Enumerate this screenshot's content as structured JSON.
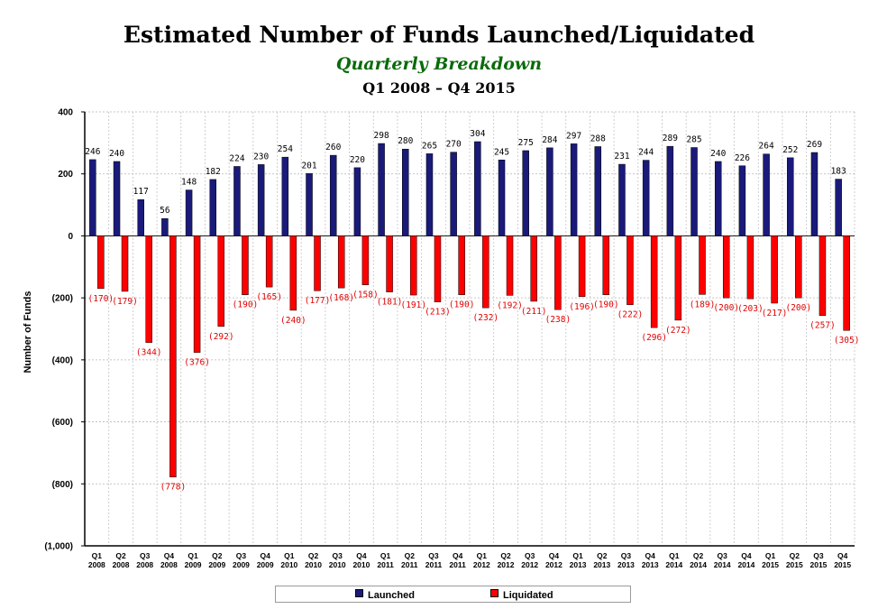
{
  "title": "Estimated Number of Funds Launched/Liquidated",
  "subtitle": "Quarterly Breakdown",
  "period": "Q1 2008 – Q4 2015",
  "colors": {
    "launched": "#1a1a7a",
    "liquidated": "#ff0000",
    "label_liquidated": "#e00000",
    "subtitle": "#0a6b0a"
  },
  "chart_data": {
    "type": "bar",
    "title": "Estimated Number of Funds Launched/Liquidated",
    "ylabel": "Number of Funds",
    "xlabel": "",
    "ylim": [
      -1000,
      400
    ],
    "yticks": [
      400,
      200,
      0,
      -200,
      -400,
      -600,
      -800,
      -1000
    ],
    "ytick_labels": [
      "400",
      "200",
      "0",
      "(200)",
      "(400)",
      "(600)",
      "(800)",
      "(1,000)"
    ],
    "grid": true,
    "legend_position": "bottom",
    "categories": [
      "Q1 2008",
      "Q2 2008",
      "Q3 2008",
      "Q4 2008",
      "Q1 2009",
      "Q2 2009",
      "Q3 2009",
      "Q4 2009",
      "Q1 2010",
      "Q2 2010",
      "Q3 2010",
      "Q4 2010",
      "Q1 2011",
      "Q2 2011",
      "Q3 2011",
      "Q4 2011",
      "Q1 2012",
      "Q2 2012",
      "Q3 2012",
      "Q4 2012",
      "Q1 2013",
      "Q2 2013",
      "Q3 2013",
      "Q4 2013",
      "Q1 2014",
      "Q2 2014",
      "Q3 2014",
      "Q4 2014",
      "Q1 2015",
      "Q2 2015",
      "Q3 2015",
      "Q4 2015"
    ],
    "series": [
      {
        "name": "Launched",
        "values": [
          246,
          240,
          117,
          56,
          148,
          182,
          224,
          230,
          254,
          201,
          260,
          220,
          298,
          280,
          265,
          270,
          304,
          245,
          275,
          284,
          297,
          288,
          231,
          244,
          289,
          285,
          240,
          226,
          264,
          252,
          269,
          183
        ]
      },
      {
        "name": "Liquidated",
        "values": [
          -170,
          -179,
          -344,
          -778,
          -376,
          -292,
          -190,
          -165,
          -240,
          -177,
          -168,
          -158,
          -181,
          -191,
          -213,
          -190,
          -232,
          -192,
          -211,
          -238,
          -196,
          -190,
          -222,
          -296,
          -272,
          -189,
          -200,
          -203,
          -217,
          -200,
          -257,
          -305
        ]
      }
    ]
  }
}
